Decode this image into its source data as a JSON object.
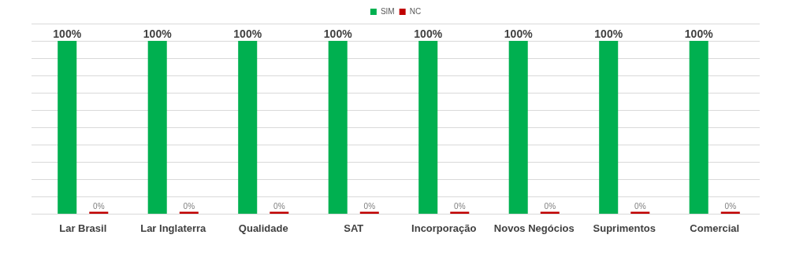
{
  "chart_data": {
    "type": "bar",
    "categories": [
      "Lar Brasil",
      "Lar Inglaterra",
      "Qualidade",
      "SAT",
      "Incorporação",
      "Novos Negócios",
      "Suprimentos",
      "Comercial"
    ],
    "series": [
      {
        "name": "SIM",
        "color": "#00b050",
        "values": [
          100,
          100,
          100,
          100,
          100,
          100,
          100,
          100
        ],
        "value_labels": [
          "100%",
          "100%",
          "100%",
          "100%",
          "100%",
          "100%",
          "100%",
          "100%"
        ]
      },
      {
        "name": "NC",
        "color": "#c00000",
        "values": [
          0,
          0,
          0,
          0,
          0,
          0,
          0,
          0
        ],
        "value_labels": [
          "0%",
          "0%",
          "0%",
          "0%",
          "0%",
          "0%",
          "0%",
          "0%"
        ]
      }
    ],
    "ylim": [
      0,
      110
    ],
    "yticks": [
      {
        "value": 0,
        "label": null
      },
      {
        "value": 10,
        "label": null
      },
      {
        "value": 20,
        "label": null
      },
      {
        "value": 30,
        "label": null
      },
      {
        "value": 40,
        "label": null
      },
      {
        "value": 50,
        "label": null
      },
      {
        "value": 60,
        "label": null
      },
      {
        "value": 70,
        "label": null
      },
      {
        "value": 80,
        "label": null
      },
      {
        "value": 90,
        "label": null
      },
      {
        "value": 100,
        "label": null
      },
      {
        "value": 110,
        "label": null
      }
    ],
    "grid": "y",
    "legend": "top",
    "tick_labels": "x"
  }
}
